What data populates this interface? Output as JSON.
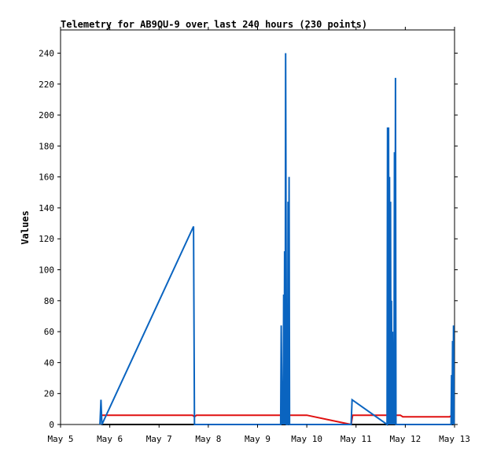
{
  "chart_data": {
    "type": "line",
    "title": "Telemetry for AB9QU-9 over last 240 hours (230 points)",
    "xlabel": "",
    "ylabel": "Values",
    "ylim": [
      0,
      255
    ],
    "xlim": [
      "May 5",
      "May 13"
    ],
    "grid": false,
    "legend": "none",
    "x_ticks": [
      {
        "day": 5,
        "label": "May 5"
      },
      {
        "day": 6,
        "label": "May 6"
      },
      {
        "day": 7,
        "label": "May 7"
      },
      {
        "day": 8,
        "label": "May 8"
      },
      {
        "day": 9,
        "label": "May 9"
      },
      {
        "day": 10,
        "label": "May 10"
      },
      {
        "day": 11,
        "label": "May 11"
      },
      {
        "day": 12,
        "label": "May 12"
      },
      {
        "day": 13,
        "label": "May 13"
      }
    ],
    "y_ticks": [
      0,
      20,
      40,
      60,
      80,
      100,
      120,
      140,
      160,
      180,
      200,
      220,
      240
    ],
    "series": [
      {
        "color": "#000000",
        "points": [
          [
            5.83,
            0
          ],
          [
            12.98,
            0
          ]
        ]
      },
      {
        "color": "#e01010",
        "points": [
          [
            5.8,
            5
          ],
          [
            5.85,
            6
          ],
          [
            7.68,
            6
          ],
          [
            7.72,
            5
          ],
          [
            7.76,
            6
          ],
          [
            9.8,
            6
          ],
          [
            10.0,
            6
          ],
          [
            10.9,
            0
          ],
          [
            10.93,
            6
          ],
          [
            11.9,
            6
          ],
          [
            11.95,
            5
          ],
          [
            12.9,
            5
          ],
          [
            12.95,
            6
          ]
        ]
      },
      {
        "color": "#0a64c0",
        "points": [
          [
            5.8,
            0
          ],
          [
            5.82,
            16
          ],
          [
            5.84,
            0
          ],
          [
            7.7,
            128
          ],
          [
            7.72,
            0
          ],
          [
            9.47,
            0
          ],
          [
            9.48,
            64
          ],
          [
            9.5,
            0
          ],
          [
            9.51,
            28
          ],
          [
            9.52,
            0
          ],
          [
            9.53,
            84
          ],
          [
            9.54,
            0
          ],
          [
            9.55,
            112
          ],
          [
            9.56,
            0
          ],
          [
            9.57,
            240
          ],
          [
            9.59,
            0
          ],
          [
            9.61,
            0
          ],
          [
            9.62,
            144
          ],
          [
            9.63,
            0
          ],
          [
            9.64,
            160
          ],
          [
            9.65,
            0
          ],
          [
            10.9,
            0
          ],
          [
            10.92,
            16
          ],
          [
            11.63,
            0
          ],
          [
            11.64,
            192
          ],
          [
            11.65,
            0
          ],
          [
            11.66,
            192
          ],
          [
            11.67,
            0
          ],
          [
            11.68,
            160
          ],
          [
            11.69,
            0
          ],
          [
            11.7,
            144
          ],
          [
            11.71,
            0
          ],
          [
            11.72,
            80
          ],
          [
            11.73,
            0
          ],
          [
            11.74,
            60
          ],
          [
            11.75,
            0
          ],
          [
            11.76,
            20
          ],
          [
            11.77,
            0
          ],
          [
            11.78,
            176
          ],
          [
            11.79,
            0
          ],
          [
            11.8,
            224
          ],
          [
            11.81,
            0
          ],
          [
            12.93,
            0
          ],
          [
            12.94,
            32
          ],
          [
            12.95,
            0
          ],
          [
            12.96,
            54
          ],
          [
            12.97,
            0
          ],
          [
            12.98,
            64
          ],
          [
            12.99,
            0
          ]
        ]
      }
    ]
  }
}
